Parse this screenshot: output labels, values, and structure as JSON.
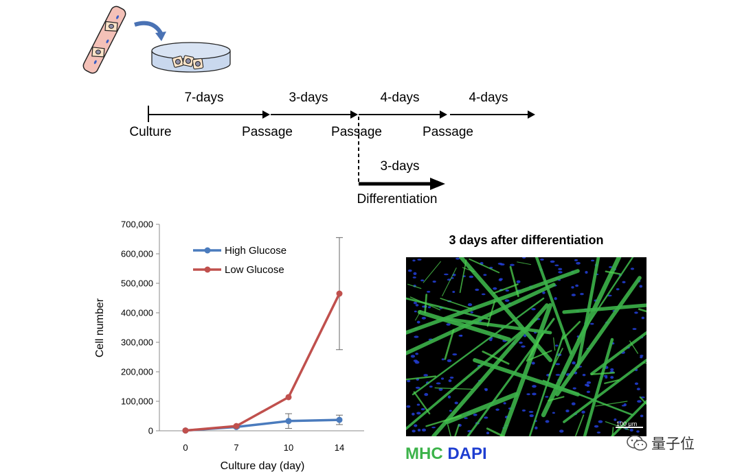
{
  "timeline": {
    "durations": [
      "7-days",
      "3-days",
      "4-days",
      "4-days"
    ],
    "events": [
      "Culture",
      "Passage",
      "Passage",
      "Passage"
    ],
    "branch": {
      "duration": "3-days",
      "event": "Differentiation"
    }
  },
  "chart_data": {
    "type": "line",
    "title": "",
    "xlabel": "Culture day (day)",
    "ylabel": "Cell number",
    "x": [
      0,
      7,
      10,
      14
    ],
    "x_ticks": [
      "0",
      "7",
      "10",
      "14"
    ],
    "ylim": [
      0,
      700000
    ],
    "y_ticks": [
      "0",
      "100,000",
      "200,000",
      "300,000",
      "400,000",
      "500,000",
      "600,000",
      "700,000"
    ],
    "legend_position": "top-left",
    "grid": false,
    "series": [
      {
        "name": "High Glucose",
        "color": "#4a7bbd",
        "values": [
          1000,
          13000,
          33000,
          37000
        ],
        "error": [
          0,
          4000,
          25000,
          16000
        ]
      },
      {
        "name": "Low Glucose",
        "color": "#c0504d",
        "values": [
          1000,
          16000,
          114000,
          465000
        ],
        "error": [
          0,
          0,
          0,
          190000
        ]
      }
    ]
  },
  "micrograph": {
    "title": "3 days after differentiation",
    "scale_bar": "100 μm",
    "stains": [
      {
        "label": "MHC",
        "color": "#3cb34a"
      },
      {
        "label": "DAPI",
        "color": "#1f3ed1"
      }
    ]
  },
  "watermark": {
    "text": "量子位"
  }
}
